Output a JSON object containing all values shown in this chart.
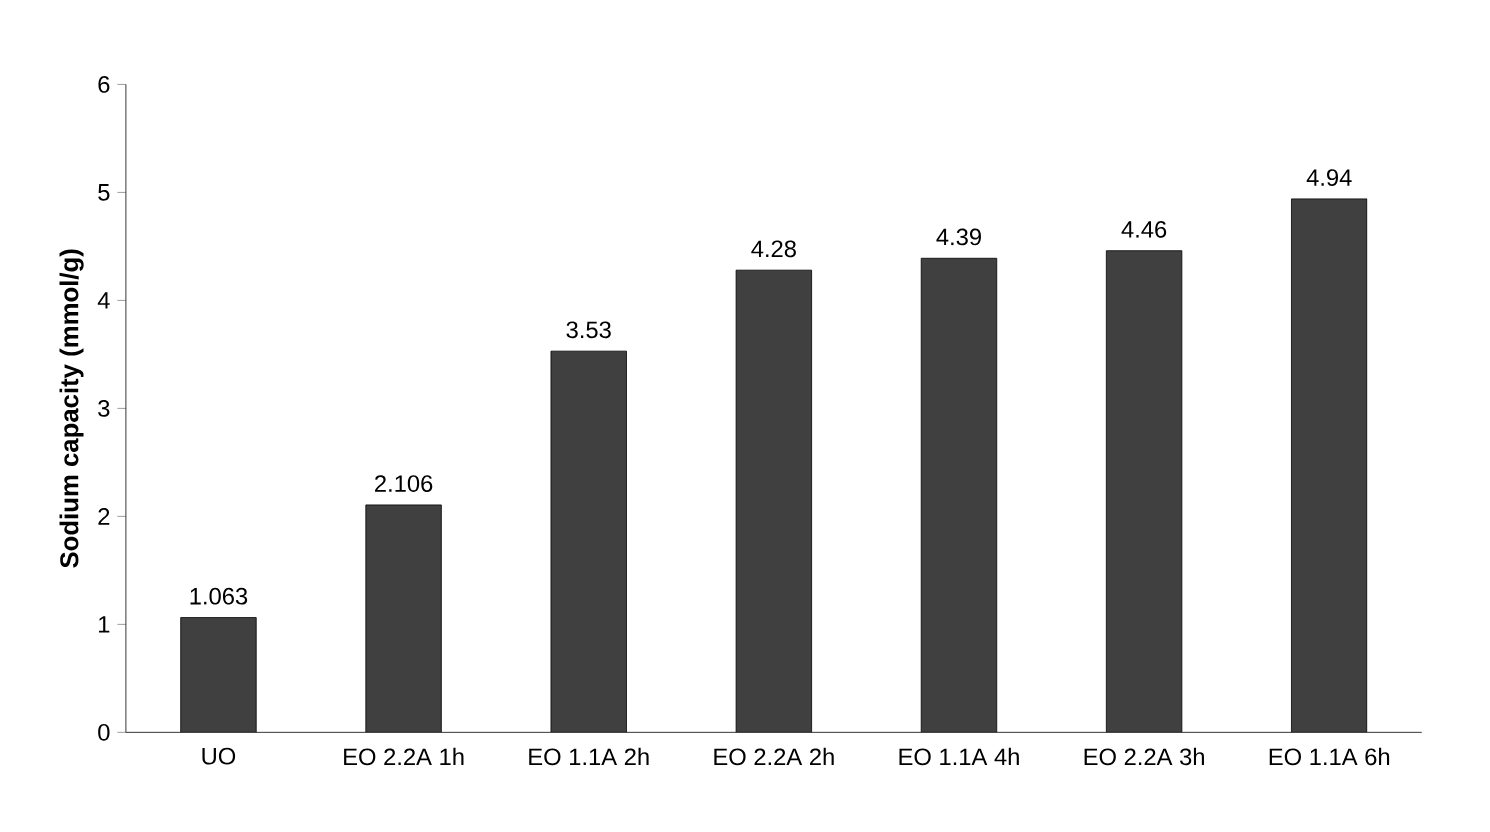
{
  "chart_data": {
    "type": "bar",
    "ylabel": "Sodium capacity (mmol/g)",
    "categories": [
      "UO",
      "EO 2.2A 1h",
      "EO 1.1A 2h",
      "EO 2.2A 2h",
      "EO 1.1A 4h",
      "EO 2.2A 3h",
      "EO 1.1A 6h"
    ],
    "values": [
      1.063,
      2.106,
      3.53,
      4.28,
      4.39,
      4.46,
      4.94
    ],
    "color": "#404040",
    "ylim": [
      0,
      6
    ],
    "yticks": [
      0,
      1,
      2,
      3,
      4,
      5,
      6
    ],
    "data_labels": true,
    "grid": false
  }
}
